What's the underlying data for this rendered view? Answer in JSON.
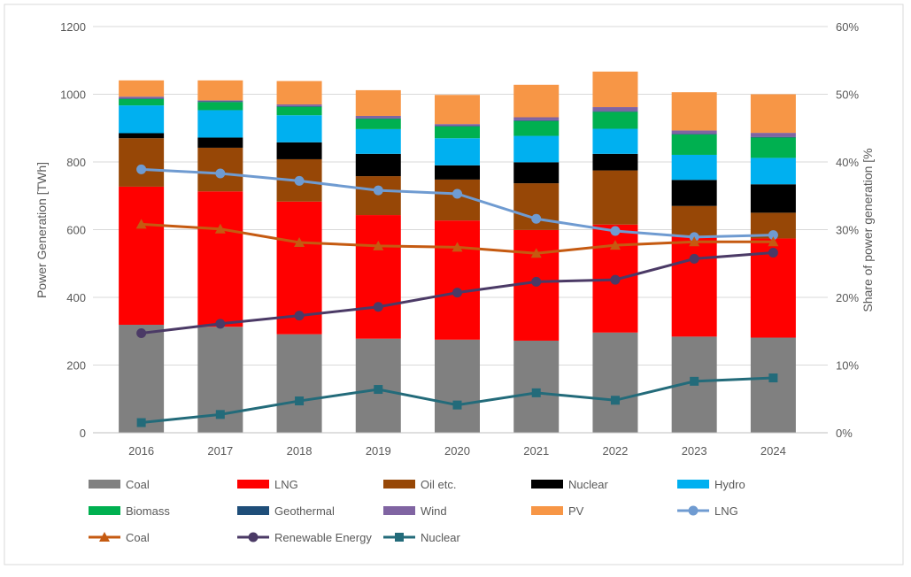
{
  "chart_data": {
    "type": "bar",
    "subtype": "stacked bar with line overlay (secondary axis)",
    "categories": [
      "2016",
      "2017",
      "2018",
      "2019",
      "2020",
      "2021",
      "2022",
      "2023",
      "2024"
    ],
    "ylabel": "Power Generation [TWh]",
    "y2label": "Share of power generation [%",
    "ylim": [
      0,
      1200
    ],
    "y_ticks": [
      "0",
      "200",
      "400",
      "600",
      "800",
      "1000",
      "1200"
    ],
    "y2lim": [
      0,
      60
    ],
    "y2_ticks": [
      "0%",
      "10%",
      "20%",
      "30%",
      "40%",
      "50%",
      "60%"
    ],
    "grid": true,
    "legend_position": "bottom",
    "series": [
      {
        "name": "Coal",
        "color": "#808080",
        "values": [
          319,
          313,
          291,
          278,
          275,
          272,
          296,
          284,
          281
        ]
      },
      {
        "name": "LNG",
        "color": "#ff0000",
        "values": [
          408,
          400,
          392,
          365,
          352,
          327,
          319,
          297,
          293
        ]
      },
      {
        "name": "Oil etc.",
        "color": "#974706",
        "values": [
          143,
          129,
          125,
          115,
          121,
          138,
          160,
          89,
          76
        ]
      },
      {
        "name": "Nuclear",
        "color": "#000000",
        "values": [
          15,
          30,
          50,
          66,
          42,
          62,
          49,
          77,
          84
        ]
      },
      {
        "name": "Hydro",
        "color": "#00b0f0",
        "values": [
          82,
          81,
          80,
          73,
          80,
          78,
          74,
          74,
          78
        ]
      },
      {
        "name": "Biomass",
        "color": "#00b050",
        "values": [
          19,
          24,
          25,
          30,
          35,
          44,
          50,
          60,
          60
        ]
      },
      {
        "name": "Geothermal",
        "color": "#1f4e79",
        "values": [
          2,
          2,
          2,
          2,
          2,
          2,
          2,
          2,
          2
        ]
      },
      {
        "name": "Wind",
        "color": "#8064a2",
        "values": [
          5,
          3,
          5,
          7,
          5,
          9,
          12,
          10,
          12
        ]
      },
      {
        "name": "PV",
        "color": "#f79646",
        "values": [
          48,
          59,
          69,
          76,
          86,
          96,
          105,
          113,
          114
        ]
      }
    ],
    "line_series": [
      {
        "name": "LNG",
        "color": "#6f9bd1",
        "marker": "circle",
        "values": [
          38.9,
          38.3,
          37.2,
          35.8,
          35.3,
          31.6,
          29.8,
          28.9,
          29.2
        ]
      },
      {
        "name": "Coal",
        "color": "#c55a11",
        "marker": "triangle",
        "values": [
          30.8,
          30.1,
          28.1,
          27.6,
          27.4,
          26.5,
          27.7,
          28.2,
          28.2
        ]
      },
      {
        "name": "Renewable Energy",
        "color": "#4b3a66",
        "marker": "circle",
        "values": [
          14.7,
          16.1,
          17.3,
          18.6,
          20.7,
          22.3,
          22.6,
          25.7,
          26.6
        ]
      },
      {
        "name": "Nuclear",
        "color": "#236b7a",
        "marker": "square",
        "values": [
          1.5,
          2.7,
          4.7,
          6.4,
          4.1,
          5.9,
          4.8,
          7.6,
          8.1
        ]
      }
    ],
    "legend": [
      "Coal",
      "LNG",
      "Oil etc.",
      "Nuclear",
      "Hydro",
      "Biomass",
      "Geothermal",
      "Wind",
      "PV",
      "LNG",
      "Coal",
      "Renewable Energy",
      "Nuclear"
    ]
  }
}
